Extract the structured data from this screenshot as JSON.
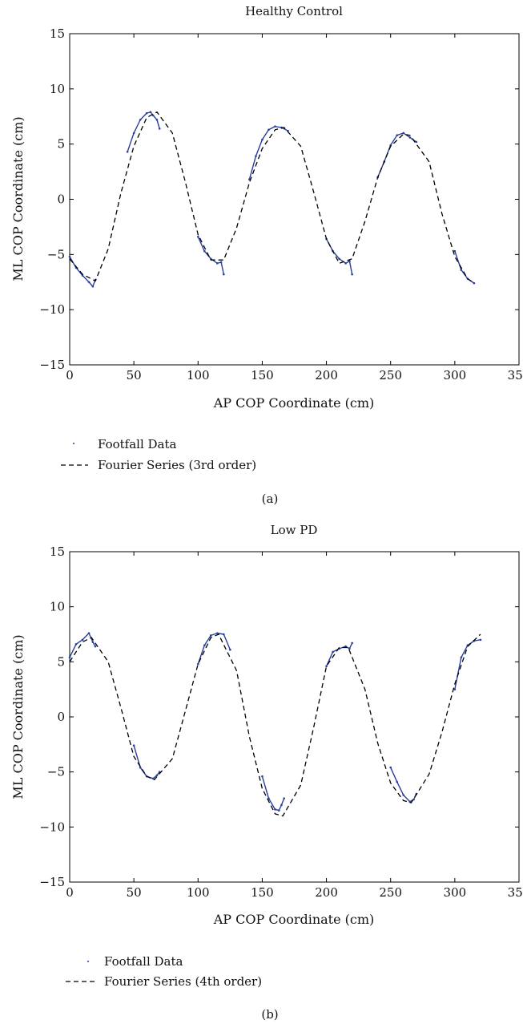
{
  "chart_data": [
    {
      "type": "scatter",
      "title": "Healthy Control",
      "xlabel": "AP COP Coordinate (cm)",
      "ylabel": "ML COP Coordinate (cm)",
      "xlim": [
        0,
        350
      ],
      "ylim": [
        -15,
        15
      ],
      "xticks": [
        0,
        50,
        100,
        150,
        200,
        250,
        300,
        350
      ],
      "yticks": [
        -15,
        -10,
        -5,
        0,
        5,
        10,
        15
      ],
      "xtick_labels": [
        "0",
        "50",
        "100",
        "150",
        "200",
        "250",
        "300",
        "350"
      ],
      "ytick_labels": [
        "−15",
        "−10",
        "−5",
        "0",
        "5",
        "10",
        "15"
      ],
      "grid": false,
      "legend_placement": "below",
      "caption": "(a)",
      "series": [
        {
          "name": "Footfall Data",
          "kind": "points",
          "color": "#2a3f9a",
          "x": [
            0,
            5,
            10,
            15,
            18,
            20,
            45,
            50,
            55,
            60,
            63,
            65,
            68,
            70,
            100,
            105,
            110,
            115,
            118,
            120,
            140,
            145,
            150,
            155,
            160,
            165,
            170,
            200,
            205,
            210,
            215,
            218,
            220,
            240,
            245,
            250,
            255,
            260,
            265,
            270,
            300,
            305,
            310,
            315
          ],
          "y": [
            -5.2,
            -6.2,
            -6.9,
            -7.5,
            -7.9,
            -7.3,
            4.3,
            6.0,
            7.2,
            7.8,
            7.9,
            7.6,
            7.2,
            6.4,
            -3.4,
            -4.7,
            -5.4,
            -5.8,
            -5.7,
            -6.8,
            1.8,
            3.9,
            5.4,
            6.3,
            6.6,
            6.5,
            6.2,
            -3.6,
            -4.7,
            -5.4,
            -5.8,
            -5.6,
            -6.8,
            2.0,
            3.4,
            4.9,
            5.8,
            6.0,
            5.6,
            5.2,
            -4.7,
            -6.4,
            -7.2,
            -7.6
          ]
        },
        {
          "name": "Fourier Series (3rd order)",
          "kind": "dashed-line",
          "color": "#000000",
          "x": [
            0,
            10,
            20,
            30,
            40,
            50,
            60,
            68,
            80,
            90,
            100,
            110,
            120,
            130,
            140,
            150,
            160,
            167,
            180,
            190,
            200,
            210,
            220,
            230,
            240,
            250,
            260,
            265,
            280,
            290,
            300,
            310,
            315
          ],
          "y": [
            -5.4,
            -6.8,
            -7.4,
            -4.5,
            0.6,
            4.8,
            7.4,
            7.9,
            6.0,
            1.6,
            -3.2,
            -5.5,
            -5.5,
            -2.6,
            1.5,
            4.6,
            6.3,
            6.5,
            4.8,
            0.7,
            -3.6,
            -5.8,
            -5.4,
            -2.0,
            2.0,
            4.8,
            5.9,
            5.8,
            3.4,
            -1.3,
            -5.2,
            -7.2,
            -7.6
          ]
        }
      ]
    },
    {
      "type": "scatter",
      "title": "Low PD",
      "xlabel": "AP COP Coordinate (cm)",
      "ylabel": "ML COP Coordinate (cm)",
      "xlim": [
        0,
        350
      ],
      "ylim": [
        -15,
        15
      ],
      "xticks": [
        0,
        50,
        100,
        150,
        200,
        250,
        300,
        350
      ],
      "yticks": [
        -15,
        -10,
        -5,
        0,
        5,
        10,
        15
      ],
      "xtick_labels": [
        "0",
        "50",
        "100",
        "150",
        "200",
        "250",
        "300",
        "350"
      ],
      "ytick_labels": [
        "−15",
        "−10",
        "−5",
        "0",
        "5",
        "10",
        "15"
      ],
      "grid": false,
      "legend_placement": "below",
      "caption": "(b)",
      "series": [
        {
          "name": "Footfall Data",
          "kind": "points",
          "color": "#2a3f9a",
          "x": [
            0,
            5,
            10,
            15,
            18,
            20,
            50,
            55,
            60,
            65,
            68,
            70,
            100,
            105,
            110,
            115,
            120,
            125,
            150,
            155,
            160,
            163,
            165,
            167,
            200,
            205,
            210,
            215,
            218,
            220,
            250,
            255,
            260,
            265,
            268,
            270,
            300,
            305,
            310,
            315,
            320
          ],
          "y": [
            5.4,
            6.6,
            7.0,
            7.6,
            6.8,
            6.4,
            -2.6,
            -4.6,
            -5.4,
            -5.6,
            -5.3,
            -5.0,
            4.8,
            6.5,
            7.4,
            7.6,
            7.5,
            6.1,
            -5.4,
            -7.4,
            -8.4,
            -8.5,
            -8.0,
            -7.4,
            4.6,
            5.9,
            6.2,
            6.4,
            6.2,
            6.7,
            -4.6,
            -5.9,
            -7.1,
            -7.7,
            -7.5,
            -7.0,
            2.5,
            5.4,
            6.5,
            6.9,
            7.0
          ]
        },
        {
          "name": "Fourier Series (4th order)",
          "kind": "dashed-line",
          "color": "#000000",
          "x": [
            0,
            10,
            17,
            30,
            40,
            50,
            60,
            66,
            80,
            90,
            100,
            110,
            116,
            130,
            140,
            150,
            160,
            166,
            180,
            190,
            200,
            210,
            217,
            230,
            240,
            250,
            260,
            266,
            280,
            290,
            300,
            310,
            320
          ],
          "y": [
            5.0,
            6.8,
            7.2,
            5.0,
            0.8,
            -3.6,
            -5.4,
            -5.7,
            -3.8,
            0.5,
            4.8,
            7.2,
            7.5,
            4.2,
            -1.8,
            -6.5,
            -8.8,
            -9.0,
            -6.2,
            -1.0,
            4.6,
            6.3,
            6.3,
            2.5,
            -2.4,
            -6.0,
            -7.6,
            -7.8,
            -5.2,
            -1.4,
            3.0,
            6.4,
            7.5
          ]
        }
      ]
    }
  ]
}
